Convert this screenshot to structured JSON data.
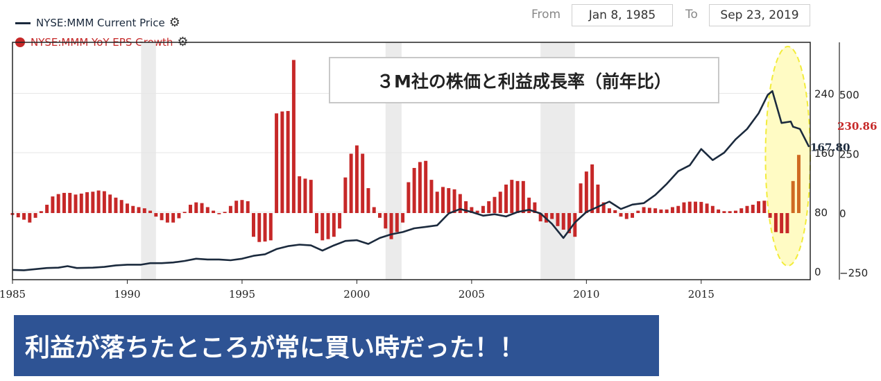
{
  "legend": {
    "price_label": "NYSE:MMM Current Price",
    "eps_label": "NYSE:MMM YoY EPS Growth",
    "gear_icon": "⚙"
  },
  "range": {
    "from_label": "From",
    "from_value": "Jan 8, 1985",
    "to_label": "To",
    "to_value": "Sep 23, 2019"
  },
  "chart_title": "３M社の株価と利益成長率（前年比）",
  "banner_text": "利益が落ちたところが常に買い時だった！！",
  "colors": {
    "price_line": "#1b2a3d",
    "eps_bar": "#c62828",
    "eps_bar_recent": "#cf6a22",
    "recession": "#ebebeb",
    "highlight_fill": "#fffbc4",
    "highlight_stroke": "#f2ec3a",
    "banner": "#2e5394"
  },
  "chart_data": {
    "type": "line+bar",
    "x_range": [
      1985,
      2019.75
    ],
    "x_ticks": [
      "1985",
      "1990",
      "1995",
      "2000",
      "2005",
      "2010",
      "2015"
    ],
    "left_axis": {
      "range": [
        0,
        240
      ],
      "ticks": [
        "0",
        "80",
        "160",
        "240"
      ]
    },
    "right_axis": {
      "range": [
        -250,
        500
      ],
      "ticks": [
        "−250",
        "0",
        "250",
        "500"
      ]
    },
    "current_values": {
      "price": "167.80",
      "eps_growth": "230.86"
    },
    "recessions": [
      [
        1990.6,
        1991.25
      ],
      [
        2001.25,
        2001.95
      ],
      [
        2008.0,
        2009.5
      ]
    ],
    "highlight_region": [
      2017.8,
      2019.75
    ],
    "series": [
      {
        "name": "NYSE:MMM Current Price",
        "axis": "left",
        "points": [
          [
            1985.0,
            2
          ],
          [
            1985.5,
            1.5
          ],
          [
            1986.0,
            3
          ],
          [
            1986.5,
            4.5
          ],
          [
            1987.0,
            5
          ],
          [
            1987.4,
            7
          ],
          [
            1987.8,
            4.5
          ],
          [
            1988.5,
            5
          ],
          [
            1989.0,
            6
          ],
          [
            1989.5,
            8
          ],
          [
            1990.0,
            9
          ],
          [
            1990.6,
            9
          ],
          [
            1991.0,
            11
          ],
          [
            1991.5,
            11
          ],
          [
            1992.0,
            12
          ],
          [
            1992.5,
            14
          ],
          [
            1993.0,
            17
          ],
          [
            1993.5,
            16
          ],
          [
            1994.0,
            16
          ],
          [
            1994.5,
            15
          ],
          [
            1995.0,
            17
          ],
          [
            1995.5,
            21
          ],
          [
            1996.0,
            23
          ],
          [
            1996.5,
            30
          ],
          [
            1997.0,
            34
          ],
          [
            1997.5,
            36
          ],
          [
            1998.0,
            35
          ],
          [
            1998.5,
            28
          ],
          [
            1999.0,
            35
          ],
          [
            1999.5,
            41
          ],
          [
            2000.0,
            42
          ],
          [
            2000.5,
            37
          ],
          [
            2001.0,
            45
          ],
          [
            2001.5,
            50
          ],
          [
            2002.0,
            53
          ],
          [
            2002.5,
            58
          ],
          [
            2003.0,
            60
          ],
          [
            2003.5,
            62
          ],
          [
            2004.0,
            78
          ],
          [
            2004.5,
            84
          ],
          [
            2005.0,
            80
          ],
          [
            2005.5,
            75
          ],
          [
            2006.0,
            77
          ],
          [
            2006.5,
            74
          ],
          [
            2007.0,
            80
          ],
          [
            2007.5,
            83
          ],
          [
            2008.0,
            78
          ],
          [
            2008.5,
            64
          ],
          [
            2009.0,
            45
          ],
          [
            2009.5,
            66
          ],
          [
            2010.0,
            80
          ],
          [
            2010.5,
            87
          ],
          [
            2011.0,
            94
          ],
          [
            2011.5,
            84
          ],
          [
            2012.0,
            90
          ],
          [
            2012.5,
            92
          ],
          [
            2013.0,
            103
          ],
          [
            2013.5,
            118
          ],
          [
            2014.0,
            135
          ],
          [
            2014.5,
            143
          ],
          [
            2015.0,
            165
          ],
          [
            2015.5,
            150
          ],
          [
            2016.0,
            160
          ],
          [
            2016.5,
            178
          ],
          [
            2017.0,
            192
          ],
          [
            2017.5,
            213
          ],
          [
            2017.9,
            238
          ],
          [
            2018.1,
            243
          ],
          [
            2018.5,
            200
          ],
          [
            2018.9,
            202
          ],
          [
            2019.0,
            195
          ],
          [
            2019.3,
            192
          ],
          [
            2019.7,
            167.8
          ]
        ]
      },
      {
        "name": "NYSE:MMM YoY EPS Growth",
        "axis": "right",
        "bars": [
          [
            1985.0,
            -8
          ],
          [
            1985.25,
            -18
          ],
          [
            1985.5,
            -28
          ],
          [
            1985.75,
            -40
          ],
          [
            1986.0,
            -20
          ],
          [
            1986.25,
            8
          ],
          [
            1986.5,
            35
          ],
          [
            1986.75,
            70
          ],
          [
            1987.0,
            80
          ],
          [
            1987.25,
            85
          ],
          [
            1987.5,
            85
          ],
          [
            1987.75,
            78
          ],
          [
            1988.0,
            82
          ],
          [
            1988.25,
            88
          ],
          [
            1988.5,
            90
          ],
          [
            1988.75,
            95
          ],
          [
            1989.0,
            92
          ],
          [
            1989.25,
            78
          ],
          [
            1989.5,
            65
          ],
          [
            1989.75,
            55
          ],
          [
            1990.0,
            40
          ],
          [
            1990.25,
            30
          ],
          [
            1990.5,
            25
          ],
          [
            1990.75,
            20
          ],
          [
            1991.0,
            10
          ],
          [
            1991.25,
            -15
          ],
          [
            1991.5,
            -30
          ],
          [
            1991.75,
            -40
          ],
          [
            1992.0,
            -40
          ],
          [
            1992.25,
            -22
          ],
          [
            1992.5,
            5
          ],
          [
            1992.75,
            35
          ],
          [
            1993.0,
            45
          ],
          [
            1993.25,
            42
          ],
          [
            1993.5,
            25
          ],
          [
            1993.75,
            10
          ],
          [
            1994.0,
            -5
          ],
          [
            1994.25,
            5
          ],
          [
            1994.5,
            30
          ],
          [
            1994.75,
            52
          ],
          [
            1995.0,
            55
          ],
          [
            1995.25,
            50
          ],
          [
            1995.5,
            -100
          ],
          [
            1995.75,
            -122
          ],
          [
            1996.0,
            -120
          ],
          [
            1996.25,
            -115
          ],
          [
            1996.5,
            420
          ],
          [
            1996.75,
            428
          ],
          [
            1997.0,
            430
          ],
          [
            1997.25,
            645
          ],
          [
            1997.5,
            155
          ],
          [
            1997.75,
            145
          ],
          [
            1998.0,
            140
          ],
          [
            1998.25,
            -85
          ],
          [
            1998.5,
            -115
          ],
          [
            1998.75,
            -110
          ],
          [
            1999.0,
            -100
          ],
          [
            1999.25,
            -65
          ],
          [
            1999.5,
            150
          ],
          [
            1999.75,
            250
          ],
          [
            2000.0,
            285
          ],
          [
            2000.25,
            250
          ],
          [
            2000.5,
            105
          ],
          [
            2000.75,
            25
          ],
          [
            2001.0,
            -20
          ],
          [
            2001.25,
            -65
          ],
          [
            2001.5,
            -110
          ],
          [
            2001.75,
            -80
          ],
          [
            2002.0,
            -40
          ],
          [
            2002.25,
            130
          ],
          [
            2002.5,
            190
          ],
          [
            2002.75,
            215
          ],
          [
            2003.0,
            220
          ],
          [
            2003.25,
            140
          ],
          [
            2003.5,
            90
          ],
          [
            2003.75,
            110
          ],
          [
            2004.0,
            105
          ],
          [
            2004.25,
            100
          ],
          [
            2004.5,
            80
          ],
          [
            2004.75,
            50
          ],
          [
            2005.0,
            25
          ],
          [
            2005.25,
            10
          ],
          [
            2005.5,
            30
          ],
          [
            2005.75,
            50
          ],
          [
            2006.0,
            68
          ],
          [
            2006.25,
            90
          ],
          [
            2006.5,
            120
          ],
          [
            2006.75,
            140
          ],
          [
            2007.0,
            135
          ],
          [
            2007.25,
            135
          ],
          [
            2007.5,
            65
          ],
          [
            2007.75,
            45
          ],
          [
            2008.0,
            -35
          ],
          [
            2008.25,
            -40
          ],
          [
            2008.5,
            -25
          ],
          [
            2008.75,
            -55
          ],
          [
            2009.0,
            -70
          ],
          [
            2009.25,
            -85
          ],
          [
            2009.5,
            -100
          ],
          [
            2009.75,
            125
          ],
          [
            2010.0,
            175
          ],
          [
            2010.25,
            205
          ],
          [
            2010.5,
            120
          ],
          [
            2010.75,
            45
          ],
          [
            2011.0,
            20
          ],
          [
            2011.25,
            12
          ],
          [
            2011.5,
            -15
          ],
          [
            2011.75,
            -25
          ],
          [
            2012.0,
            -20
          ],
          [
            2012.25,
            10
          ],
          [
            2012.5,
            25
          ],
          [
            2012.75,
            22
          ],
          [
            2013.0,
            20
          ],
          [
            2013.25,
            15
          ],
          [
            2013.5,
            15
          ],
          [
            2013.75,
            25
          ],
          [
            2014.0,
            30
          ],
          [
            2014.25,
            45
          ],
          [
            2014.5,
            48
          ],
          [
            2014.75,
            48
          ],
          [
            2015.0,
            47
          ],
          [
            2015.25,
            40
          ],
          [
            2015.5,
            30
          ],
          [
            2015.75,
            15
          ],
          [
            2016.0,
            8
          ],
          [
            2016.25,
            8
          ],
          [
            2016.5,
            10
          ],
          [
            2016.75,
            20
          ],
          [
            2017.0,
            30
          ],
          [
            2017.25,
            35
          ],
          [
            2017.5,
            50
          ],
          [
            2017.75,
            52
          ],
          [
            2018.0,
            -20
          ],
          [
            2018.25,
            -80
          ],
          [
            2018.5,
            -85
          ],
          [
            2018.75,
            -85
          ],
          [
            2019.0,
            135
          ],
          [
            2019.25,
            245
          ]
        ]
      }
    ]
  }
}
